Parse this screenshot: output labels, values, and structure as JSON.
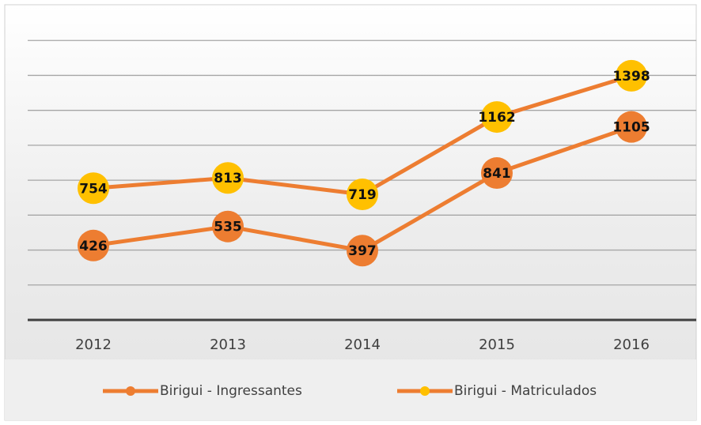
{
  "chart_data": {
    "type": "line",
    "categories": [
      "2012",
      "2013",
      "2014",
      "2015",
      "2016"
    ],
    "series": [
      {
        "name": "Birigui - Ingressantes",
        "color": "#ed7d31",
        "marker_color": "#ed7d31",
        "values": [
          426,
          535,
          397,
          841,
          1105
        ]
      },
      {
        "name": "Birigui - Matriculados",
        "color": "#ed7d31",
        "marker_color": "#ffc000",
        "values": [
          754,
          813,
          719,
          1162,
          1398
        ]
      }
    ],
    "ylim": [
      0,
      1800
    ],
    "yticks": [
      0,
      200,
      400,
      600,
      800,
      1000,
      1200,
      1400,
      1600
    ],
    "grid": true,
    "legend": "bottom"
  }
}
